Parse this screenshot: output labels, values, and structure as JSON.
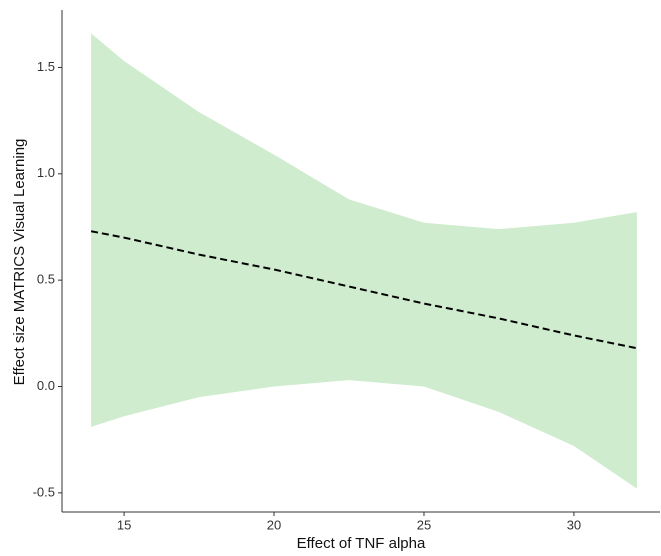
{
  "chart_data": {
    "type": "line",
    "xlabel": "Effect of TNF alpha",
    "ylabel": "Effect size MATRICS Visual Learning",
    "x": [
      13.9,
      15,
      17.5,
      20,
      22.5,
      25,
      27.5,
      30,
      32.1
    ],
    "values": [
      0.73,
      0.7,
      0.62,
      0.55,
      0.47,
      0.39,
      0.32,
      0.24,
      0.18
    ],
    "lower": [
      -0.19,
      -0.14,
      -0.05,
      0.0,
      0.03,
      0.0,
      -0.12,
      -0.28,
      -0.48
    ],
    "upper": [
      1.66,
      1.53,
      1.29,
      1.09,
      0.88,
      0.77,
      0.74,
      0.77,
      0.82
    ],
    "color": "#000000",
    "band_color": "#cfeccf",
    "xlim": [
      12.93,
      32.87
    ],
    "ylim": [
      -0.59,
      1.77
    ],
    "xticks": [
      15,
      20,
      25,
      30
    ],
    "yticks": [
      -0.5,
      {
        "value": 0,
        "label": "0.0"
      },
      0.5,
      {
        "value": 1,
        "label": "1.0"
      },
      1.5
    ]
  }
}
